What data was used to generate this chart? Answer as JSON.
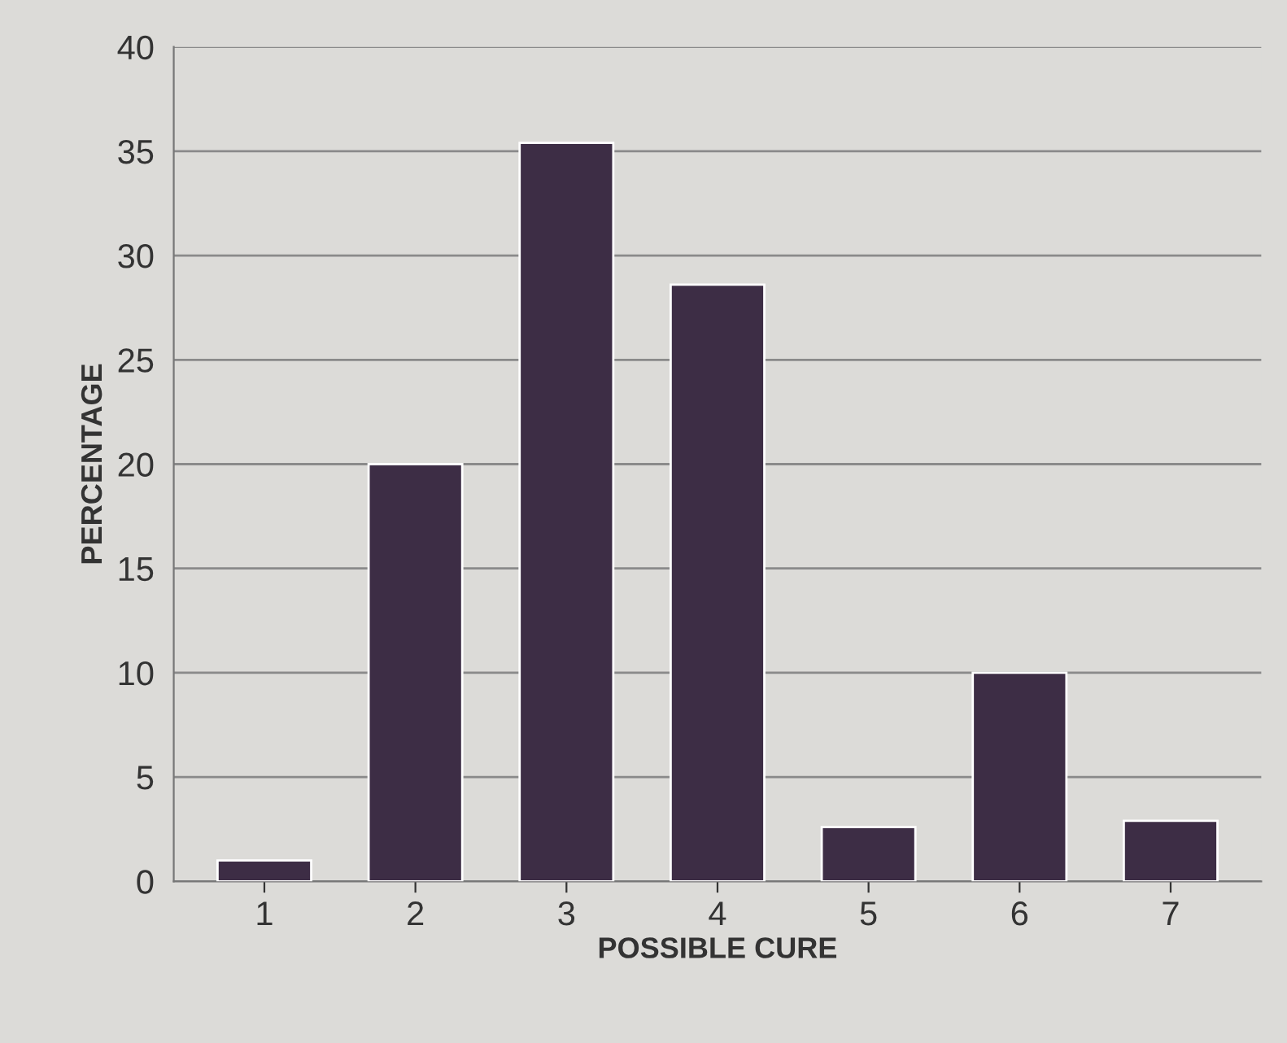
{
  "chart_data": {
    "type": "bar",
    "xlabel": "POSSIBLE CURE",
    "ylabel": "PERCENTAGE",
    "categories": [
      "1",
      "2",
      "3",
      "4",
      "5",
      "6",
      "7"
    ],
    "values": [
      1.0,
      20,
      35.4,
      28.6,
      2.6,
      10,
      2.9
    ],
    "color": "#3d2d45",
    "ylim": [
      0,
      40
    ],
    "yticks": [
      0,
      5,
      10,
      15,
      20,
      25,
      30,
      35,
      40
    ],
    "grid": "y"
  }
}
